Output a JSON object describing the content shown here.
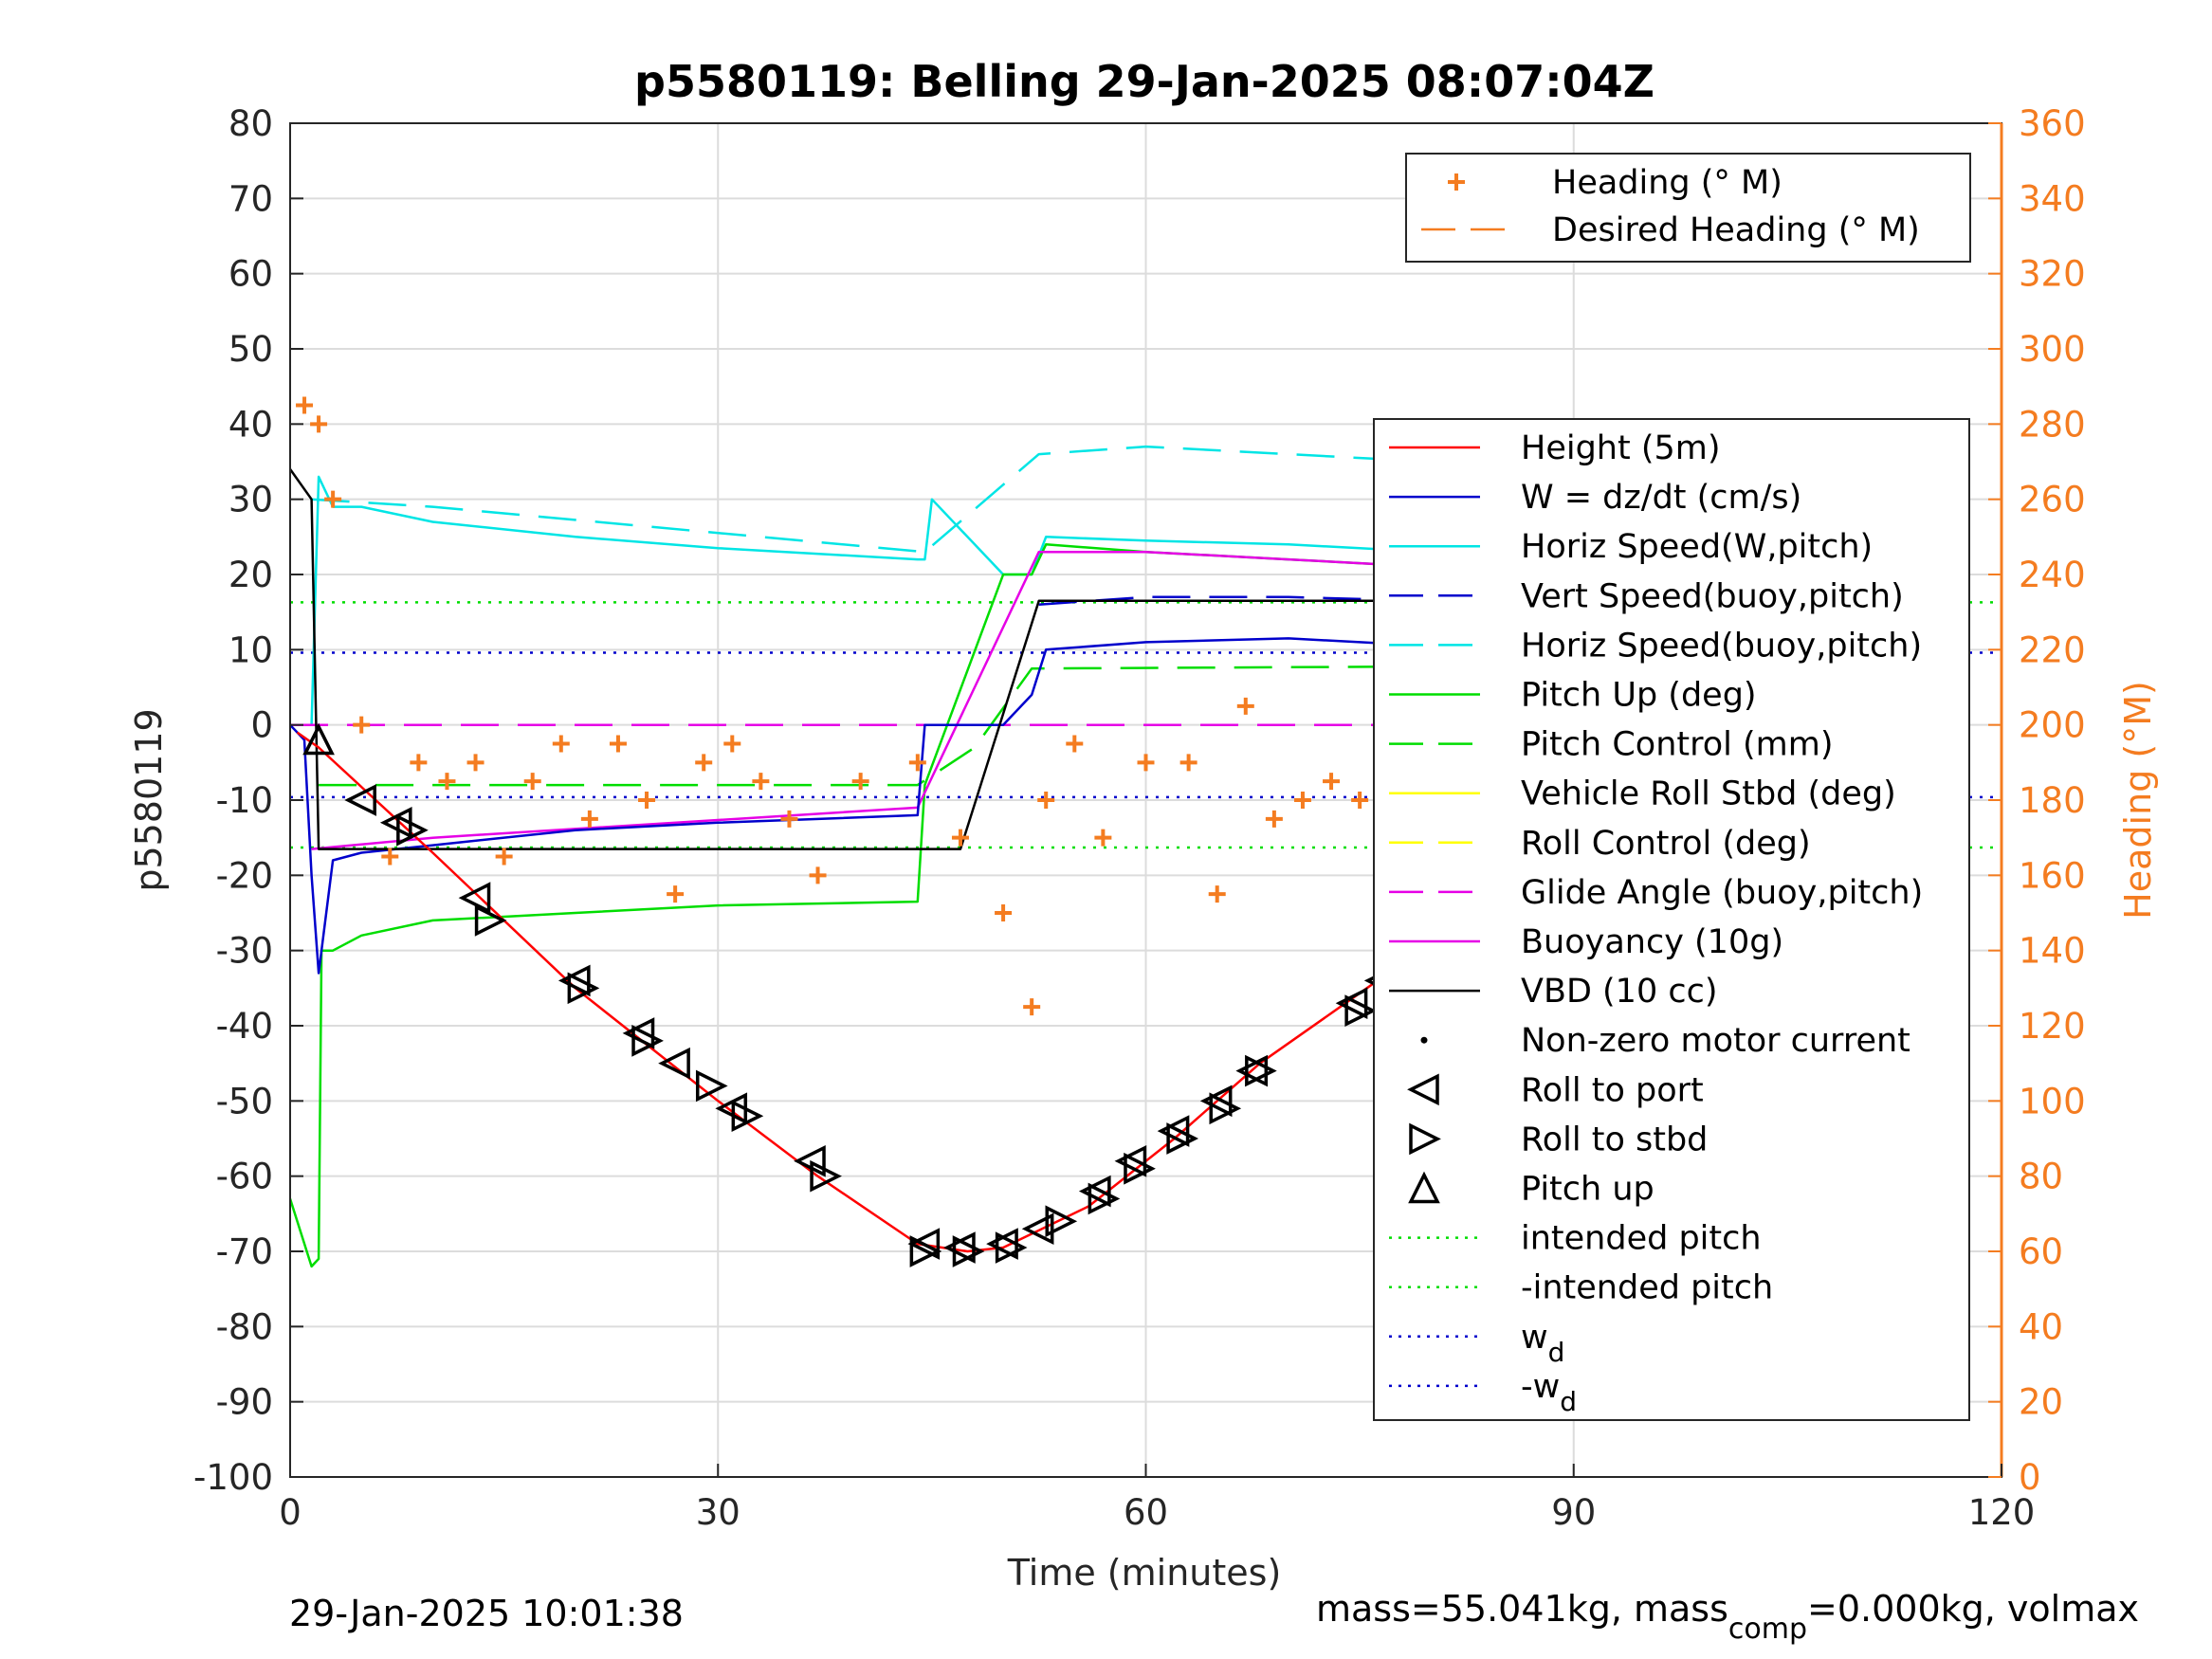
{
  "chart_data": {
    "type": "line",
    "title": "p5580119: Belling 29-Jan-2025 08:07:04Z",
    "xlabel": "Time (minutes)",
    "ylabel": "p5580119",
    "y2label": "Heading (°M)",
    "xlim": [
      0,
      120
    ],
    "ylim": [
      -100,
      80
    ],
    "y2lim": [
      0,
      360
    ],
    "xticks": [
      "0",
      "30",
      "60",
      "90",
      "120"
    ],
    "yticks": [
      "-100",
      "-90",
      "-80",
      "-70",
      "-60",
      "-50",
      "-40",
      "-30",
      "-20",
      "-10",
      "0",
      "10",
      "20",
      "30",
      "40",
      "50",
      "60",
      "70",
      "80"
    ],
    "y2ticks": [
      "0",
      "20",
      "40",
      "60",
      "80",
      "100",
      "120",
      "140",
      "160",
      "180",
      "200",
      "220",
      "240",
      "260",
      "280",
      "300",
      "320",
      "340",
      "360"
    ],
    "grid": true,
    "footer_left": "29-Jan-2025 10:01:38",
    "footer_right": {
      "pre": "mass=55.041kg, mass",
      "sub": "comp",
      "post": "=0.000kg, volmax"
    },
    "legend_heading": [
      {
        "label": "Heading (° M)",
        "color": "#f47c20",
        "marker": "plus"
      },
      {
        "label": "Desired Heading (° M)",
        "color": "#f47c20",
        "style": "dashed"
      }
    ],
    "legend_main": [
      {
        "label": "Height (5m)",
        "color": "#ff0000",
        "style": "solid"
      },
      {
        "label": "W = dz/dt (cm/s)",
        "color": "#0000cc",
        "style": "solid"
      },
      {
        "label": "Horiz Speed(W,pitch)",
        "color": "#00e5e5",
        "style": "solid"
      },
      {
        "label": "Vert Speed(buoy,pitch)",
        "color": "#0000cc",
        "style": "dashed"
      },
      {
        "label": "Horiz Speed(buoy,pitch)",
        "color": "#00e5e5",
        "style": "dashed"
      },
      {
        "label": "Pitch Up (deg)",
        "color": "#00dd00",
        "style": "solid"
      },
      {
        "label": "Pitch Control (mm)",
        "color": "#00dd00",
        "style": "dashed"
      },
      {
        "label": "Vehicle Roll Stbd (deg)",
        "color": "#ffff00",
        "style": "solid"
      },
      {
        "label": "Roll Control (deg)",
        "color": "#ffff00",
        "style": "dashed"
      },
      {
        "label": "Glide Angle (buoy,pitch)",
        "color": "#e600e6",
        "style": "dashed"
      },
      {
        "label": "Buoyancy (10g)",
        "color": "#e600e6",
        "style": "solid"
      },
      {
        "label": "VBD (10 cc)",
        "color": "#000000",
        "style": "solid"
      },
      {
        "label": "Non-zero motor current",
        "color": "#000000",
        "marker": "dot"
      },
      {
        "label": "Roll to port",
        "color": "#000000",
        "marker": "tri-left"
      },
      {
        "label": "Roll to stbd",
        "color": "#000000",
        "marker": "tri-right"
      },
      {
        "label": "Pitch up",
        "color": "#000000",
        "marker": "tri-up"
      },
      {
        "label": "intended pitch",
        "color": "#00dd00",
        "style": "dotted"
      },
      {
        "label": "-intended pitch",
        "color": "#00dd00",
        "style": "dotted"
      },
      {
        "label": "w",
        "sub": "d",
        "color": "#0000cc",
        "style": "dotted"
      },
      {
        "label": "-w",
        "sub": "d",
        "color": "#0000cc",
        "style": "dotted"
      }
    ],
    "ref_lines": {
      "intended_pitch": 16.3,
      "neg_intended_pitch": -16.3,
      "wd": 9.6,
      "neg_wd": -9.6
    },
    "series": {
      "height": {
        "x": [
          0.5,
          2,
          10,
          20,
          30,
          37,
          44,
          47.5,
          50,
          56,
          62,
          68,
          74,
          80,
          86,
          92,
          98,
          104
        ],
        "y": [
          -1,
          -3,
          -17,
          -35,
          -50,
          -60,
          -69,
          -70,
          -69.5,
          -64,
          -55,
          -45,
          -37,
          -29,
          -22,
          -14,
          -6,
          -1
        ]
      },
      "w": {
        "x": [
          0,
          1,
          1.5,
          2,
          3,
          5,
          10,
          20,
          30,
          44,
          44.5,
          50,
          52,
          53,
          60,
          70,
          80,
          90,
          100,
          104,
          105
        ],
        "y": [
          0,
          -2,
          -20,
          -33,
          -18,
          -17,
          -16,
          -14,
          -13,
          -12,
          0,
          0,
          4,
          10,
          11,
          11.5,
          10.5,
          10,
          10,
          9,
          2
        ]
      },
      "horiz_speed_w": {
        "x": [
          1.5,
          2,
          3,
          5,
          10,
          20,
          30,
          44,
          44.5,
          45,
          50,
          52,
          53,
          60,
          70,
          80,
          90,
          100,
          104,
          105
        ],
        "y": [
          0,
          33,
          29,
          29,
          27,
          25,
          23.5,
          22,
          22,
          30,
          20,
          20,
          25,
          24.5,
          24,
          23,
          22,
          21,
          20,
          20
        ]
      },
      "vert_speed_buoy": {
        "x": [
          52.5,
          60,
          70,
          80,
          90,
          100,
          104
        ],
        "y": [
          16,
          17,
          17,
          16.5,
          16,
          15,
          15
        ]
      },
      "horiz_speed_buoy": {
        "x": [
          1.5,
          10,
          44.5,
          52.5,
          60,
          70,
          80,
          90,
          100,
          104
        ],
        "y": [
          30,
          29,
          23,
          36,
          37,
          36,
          35,
          34,
          33,
          36
        ]
      },
      "pitch_up": {
        "x": [
          0,
          1.5,
          2,
          2.2,
          3,
          5,
          10,
          20,
          30,
          44,
          44.5,
          50,
          52,
          53,
          60,
          70,
          80,
          90,
          100,
          104,
          105
        ],
        "y": [
          -63,
          -72,
          -71,
          -30,
          -30,
          -28,
          -26,
          -25,
          -24,
          -23.5,
          -8,
          20,
          20,
          24,
          23,
          22,
          21,
          20,
          19,
          20,
          2
        ]
      },
      "pitch_control": {
        "x": [
          2,
          44,
          48,
          52,
          104
        ],
        "y": [
          -8,
          -8,
          -3,
          7.5,
          8
        ]
      },
      "glide_angle": {
        "x": [
          0,
          104
        ],
        "y": [
          0,
          0
        ]
      },
      "buoyancy": {
        "x": [
          1.5,
          10,
          44,
          52.5,
          60,
          70,
          80,
          90,
          100,
          104
        ],
        "y": [
          -16.5,
          -15,
          -11,
          23,
          23,
          22,
          21,
          20,
          19.5,
          19
        ]
      },
      "vbd": {
        "x": [
          0,
          1.5,
          2,
          47,
          52.5,
          104
        ],
        "y": [
          34,
          30,
          -16.5,
          -16.5,
          16.5,
          16.5
        ]
      },
      "heading_deg": {
        "x": [
          1,
          2,
          3,
          5,
          7,
          9,
          11,
          13,
          15,
          17,
          19,
          21,
          23,
          25,
          27,
          29,
          31,
          33,
          35,
          37,
          40,
          44,
          47,
          50,
          52,
          53,
          55,
          57,
          60,
          63,
          65,
          67,
          69,
          71,
          73,
          75,
          77,
          79,
          81,
          83,
          85,
          87,
          89,
          91,
          93,
          95,
          97,
          99,
          101,
          103,
          105
        ],
        "y": [
          285,
          280,
          260,
          200,
          165,
          190,
          185,
          190,
          165,
          185,
          195,
          175,
          195,
          180,
          155,
          190,
          195,
          185,
          175,
          160,
          185,
          190,
          170,
          150,
          125,
          180,
          195,
          170,
          190,
          190,
          155,
          205,
          175,
          180,
          185,
          180,
          170,
          200,
          180,
          190,
          200,
          200,
          190,
          190,
          180,
          195,
          190,
          195,
          190,
          200,
          185
        ]
      }
    },
    "markers": {
      "roll_to_port": [
        [
          5,
          -10
        ],
        [
          7.5,
          -13
        ],
        [
          13,
          -23
        ],
        [
          20,
          -34
        ],
        [
          24.5,
          -41
        ],
        [
          27,
          -45
        ],
        [
          31,
          -51
        ],
        [
          36.5,
          -58
        ],
        [
          44.5,
          -69
        ],
        [
          47,
          -69.5
        ],
        [
          50,
          -69
        ],
        [
          52.5,
          -67
        ],
        [
          56.5,
          -62
        ],
        [
          59,
          -58
        ],
        [
          62,
          -54
        ],
        [
          65,
          -50
        ],
        [
          67.5,
          -46
        ],
        [
          74.5,
          -37
        ],
        [
          76.5,
          -34
        ],
        [
          78.5,
          -32
        ],
        [
          81,
          -27
        ],
        [
          84,
          -24
        ],
        [
          88,
          -19
        ],
        [
          90.5,
          -15
        ],
        [
          99,
          -6
        ],
        [
          101.5,
          -4
        ],
        [
          104,
          -1
        ]
      ],
      "roll_to_stbd": [
        [
          8.5,
          -14
        ],
        [
          14,
          -26
        ],
        [
          20.5,
          -35
        ],
        [
          25,
          -42
        ],
        [
          29.5,
          -48
        ],
        [
          32,
          -52
        ],
        [
          37.5,
          -60
        ],
        [
          44.5,
          -70
        ],
        [
          47.5,
          -70
        ],
        [
          50.5,
          -69.5
        ],
        [
          54,
          -66
        ],
        [
          57,
          -63
        ],
        [
          59.5,
          -59
        ],
        [
          62.5,
          -55
        ],
        [
          65.5,
          -51
        ],
        [
          68,
          -46
        ],
        [
          75,
          -38
        ],
        [
          77,
          -35
        ],
        [
          79,
          -33
        ],
        [
          82,
          -28
        ],
        [
          85,
          -24
        ],
        [
          89,
          -18
        ],
        [
          91.5,
          -15
        ],
        [
          100,
          -6
        ],
        [
          102,
          -5
        ],
        [
          105,
          -1
        ]
      ],
      "pitch_up": [
        [
          2,
          -2
        ]
      ]
    }
  }
}
